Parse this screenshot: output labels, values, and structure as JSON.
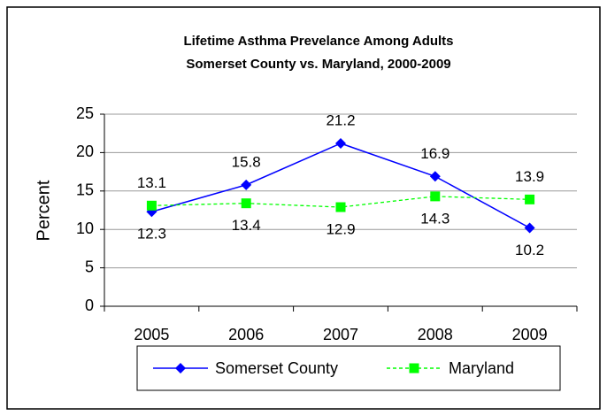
{
  "chart_data": {
    "type": "line",
    "title": [
      "Lifetime Asthma Prevelance Among Adults",
      "Somerset County vs. Maryland, 2000-2009"
    ],
    "y_label": "Percent",
    "categories": [
      "2005",
      "2006",
      "2007",
      "2008",
      "2009"
    ],
    "series": [
      {
        "name": "Somerset County",
        "color": "#0000ff",
        "marker": "diamond",
        "values": [
          12.3,
          15.8,
          21.2,
          16.9,
          10.2
        ]
      },
      {
        "name": "Maryland",
        "color": "#00ff00",
        "marker": "square",
        "dashed": true,
        "values": [
          13.1,
          13.4,
          12.9,
          14.3,
          13.9
        ]
      }
    ],
    "ylim": [
      0,
      25
    ],
    "yticks": [
      0,
      5,
      10,
      15,
      20,
      25
    ],
    "grid": true,
    "legend": "bottom"
  }
}
